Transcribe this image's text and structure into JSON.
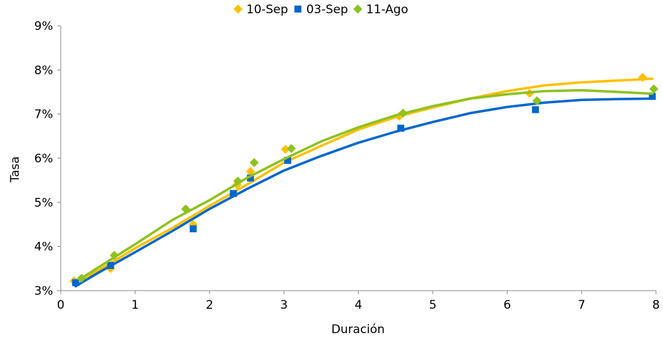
{
  "chart_data": {
    "type": "scatter",
    "xlabel": "Duración",
    "ylabel": "Tasa",
    "xlim": [
      0,
      8
    ],
    "ylim": [
      3,
      9
    ],
    "x_ticks": [
      {
        "value": 0,
        "label": "0"
      },
      {
        "value": 1,
        "label": "1"
      },
      {
        "value": 2,
        "label": "2"
      },
      {
        "value": 3,
        "label": "3"
      },
      {
        "value": 4,
        "label": "4"
      },
      {
        "value": 5,
        "label": "5"
      },
      {
        "value": 6,
        "label": "6"
      },
      {
        "value": 7,
        "label": "7"
      },
      {
        "value": 8,
        "label": "8"
      }
    ],
    "y_ticks": [
      {
        "value": 3,
        "label": "3%"
      },
      {
        "value": 4,
        "label": "4%"
      },
      {
        "value": 5,
        "label": "5%"
      },
      {
        "value": 6,
        "label": "6%"
      },
      {
        "value": 7,
        "label": "7%"
      },
      {
        "value": 8,
        "label": "8%"
      },
      {
        "value": 9,
        "label": "9%"
      }
    ],
    "grid": false,
    "legend_position": "top-center",
    "series": [
      {
        "name": "10-Sep",
        "color": "#FFC000",
        "marker": "diamond",
        "points": [
          [
            0.18,
            3.22
          ],
          [
            0.67,
            3.5
          ],
          [
            1.78,
            4.5
          ],
          [
            2.37,
            5.4
          ],
          [
            2.55,
            5.7
          ],
          [
            3.02,
            6.2
          ],
          [
            4.55,
            6.95
          ],
          [
            6.3,
            7.47
          ],
          [
            7.82,
            7.83
          ]
        ],
        "curve": [
          [
            0.2,
            3.18
          ],
          [
            0.5,
            3.45
          ],
          [
            1.0,
            3.96
          ],
          [
            1.5,
            4.42
          ],
          [
            2.0,
            4.92
          ],
          [
            2.5,
            5.4
          ],
          [
            3.0,
            5.9
          ],
          [
            3.5,
            6.28
          ],
          [
            4.0,
            6.65
          ],
          [
            4.5,
            6.93
          ],
          [
            5.0,
            7.15
          ],
          [
            5.5,
            7.35
          ],
          [
            6.0,
            7.52
          ],
          [
            6.5,
            7.65
          ],
          [
            7.0,
            7.72
          ],
          [
            7.5,
            7.76
          ],
          [
            7.95,
            7.8
          ]
        ]
      },
      {
        "name": "03-Sep",
        "color": "#0066CC",
        "marker": "square",
        "points": [
          [
            0.2,
            3.18
          ],
          [
            0.67,
            3.57
          ],
          [
            1.78,
            4.4
          ],
          [
            2.32,
            5.2
          ],
          [
            2.55,
            5.55
          ],
          [
            3.05,
            5.95
          ],
          [
            4.57,
            6.68
          ],
          [
            6.38,
            7.1
          ],
          [
            7.95,
            7.4
          ]
        ],
        "curve": [
          [
            0.2,
            3.1
          ],
          [
            0.5,
            3.4
          ],
          [
            1.0,
            3.87
          ],
          [
            1.5,
            4.35
          ],
          [
            2.0,
            4.85
          ],
          [
            2.5,
            5.3
          ],
          [
            3.0,
            5.72
          ],
          [
            3.5,
            6.05
          ],
          [
            4.0,
            6.35
          ],
          [
            4.5,
            6.6
          ],
          [
            5.0,
            6.82
          ],
          [
            5.5,
            7.02
          ],
          [
            6.0,
            7.16
          ],
          [
            6.5,
            7.26
          ],
          [
            7.0,
            7.32
          ],
          [
            7.5,
            7.34
          ],
          [
            7.95,
            7.35
          ]
        ]
      },
      {
        "name": "11-Ago",
        "color": "#8DC21F",
        "marker": "diamond",
        "points": [
          [
            0.28,
            3.28
          ],
          [
            0.72,
            3.8
          ],
          [
            1.68,
            4.85
          ],
          [
            2.38,
            5.48
          ],
          [
            2.6,
            5.9
          ],
          [
            3.1,
            6.22
          ],
          [
            4.6,
            7.02
          ],
          [
            6.4,
            7.3
          ],
          [
            7.97,
            7.57
          ]
        ],
        "curve": [
          [
            0.25,
            3.25
          ],
          [
            0.5,
            3.52
          ],
          [
            1.0,
            4.05
          ],
          [
            1.5,
            4.6
          ],
          [
            2.0,
            5.05
          ],
          [
            2.5,
            5.55
          ],
          [
            3.0,
            5.98
          ],
          [
            3.5,
            6.38
          ],
          [
            4.0,
            6.7
          ],
          [
            4.5,
            6.97
          ],
          [
            5.0,
            7.18
          ],
          [
            5.5,
            7.35
          ],
          [
            6.0,
            7.45
          ],
          [
            6.5,
            7.52
          ],
          [
            7.0,
            7.54
          ],
          [
            7.5,
            7.5
          ],
          [
            7.95,
            7.46
          ]
        ]
      }
    ]
  }
}
